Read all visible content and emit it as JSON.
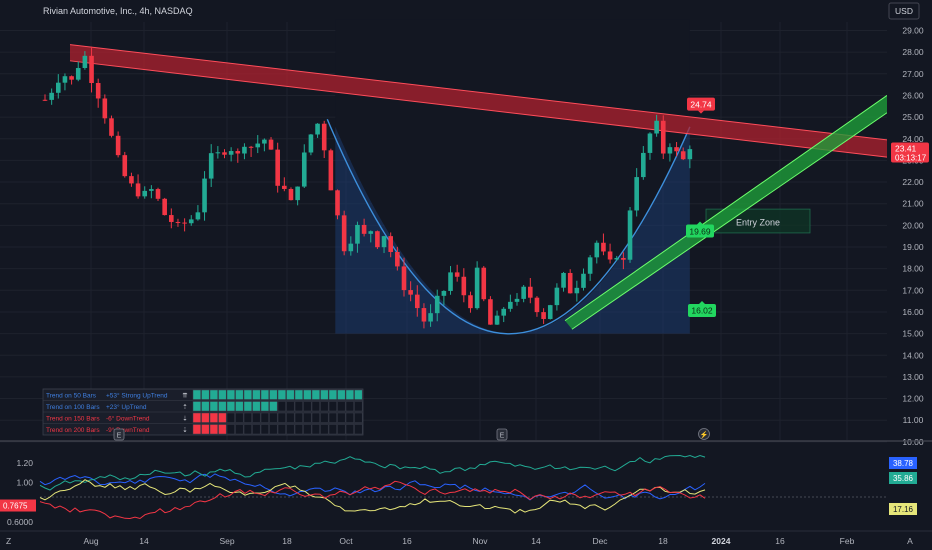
{
  "header": {
    "title": "Rivian Automotive, Inc., 4h, NASDAQ",
    "currency": "USD"
  },
  "chart_data": {
    "type": "candlestick",
    "symbol": "RIVN",
    "interval": "4h",
    "x_labels": [
      "Aug",
      "14",
      "Sep",
      "18",
      "Oct",
      "16",
      "Nov",
      "14",
      "Dec",
      "18",
      "2024",
      "16",
      "Feb"
    ],
    "price_axis": {
      "ylim": [
        10.0,
        29.5
      ],
      "ticks": [
        29.0,
        28.0,
        27.0,
        26.0,
        25.0,
        24.0,
        23.0,
        22.0,
        21.0,
        20.0,
        19.0,
        18.0,
        17.0,
        16.0,
        15.0,
        14.0,
        13.0,
        12.0,
        11.0,
        10.0
      ]
    },
    "last_price": {
      "value": "23.41",
      "countdown": "03:13:17"
    },
    "price_path": [
      [
        0.0,
        25.8
      ],
      [
        0.8,
        26.4
      ],
      [
        1.6,
        27.2
      ],
      [
        2.2,
        26.4
      ],
      [
        3.0,
        27.4
      ],
      [
        3.6,
        27.8
      ],
      [
        4.2,
        26.8
      ],
      [
        5.0,
        25.8
      ],
      [
        5.8,
        24.4
      ],
      [
        6.6,
        23.0
      ],
      [
        7.4,
        22.0
      ],
      [
        8.2,
        21.6
      ],
      [
        9.0,
        21.4
      ],
      [
        9.8,
        21.7
      ],
      [
        10.6,
        20.6
      ],
      [
        11.4,
        20.2
      ],
      [
        12.2,
        19.8
      ],
      [
        13.0,
        20.4
      ],
      [
        13.6,
        20.1
      ],
      [
        14.2,
        22.0
      ],
      [
        15.0,
        23.1
      ],
      [
        15.8,
        23.3
      ],
      [
        16.6,
        23.7
      ],
      [
        17.4,
        23.2
      ],
      [
        18.2,
        24.1
      ],
      [
        18.8,
        23.4
      ],
      [
        19.6,
        24.2
      ],
      [
        20.4,
        23.3
      ],
      [
        21.0,
        22.0
      ],
      [
        21.6,
        21.6
      ],
      [
        22.2,
        21.0
      ],
      [
        22.8,
        22.0
      ],
      [
        23.4,
        23.2
      ],
      [
        24.0,
        24.2
      ],
      [
        24.6,
        24.7
      ],
      [
        25.2,
        23.6
      ],
      [
        25.6,
        22.0
      ],
      [
        26.0,
        21.6
      ],
      [
        26.6,
        19.8
      ],
      [
        27.2,
        18.6
      ],
      [
        27.6,
        19.4
      ],
      [
        28.2,
        19.9
      ],
      [
        28.8,
        19.5
      ],
      [
        29.4,
        19.8
      ],
      [
        30.0,
        19.2
      ],
      [
        30.6,
        19.6
      ],
      [
        31.2,
        18.8
      ],
      [
        31.8,
        17.9
      ],
      [
        32.4,
        17.2
      ],
      [
        33.0,
        16.8
      ],
      [
        33.6,
        16.2
      ],
      [
        34.2,
        15.6
      ],
      [
        34.8,
        15.8
      ],
      [
        35.4,
        16.5
      ],
      [
        36.0,
        17.0
      ],
      [
        36.6,
        17.8
      ],
      [
        37.2,
        17.5
      ],
      [
        37.8,
        16.8
      ],
      [
        38.4,
        16.4
      ],
      [
        39.0,
        17.8
      ],
      [
        39.6,
        16.5
      ],
      [
        40.2,
        15.4
      ],
      [
        40.8,
        15.6
      ],
      [
        41.4,
        16.2
      ],
      [
        42.0,
        16.6
      ],
      [
        42.6,
        16.4
      ],
      [
        43.2,
        17.0
      ],
      [
        43.8,
        16.7
      ],
      [
        44.4,
        16.2
      ],
      [
        45.0,
        15.8
      ],
      [
        45.6,
        16.4
      ],
      [
        46.2,
        17.0
      ],
      [
        46.8,
        17.6
      ],
      [
        47.4,
        17.0
      ],
      [
        48.0,
        17.3
      ],
      [
        48.6,
        18.0
      ],
      [
        49.2,
        18.6
      ],
      [
        49.8,
        19.2
      ],
      [
        50.4,
        18.6
      ],
      [
        51.0,
        18.2
      ],
      [
        51.6,
        18.7
      ],
      [
        52.2,
        18.3
      ],
      [
        52.8,
        20.8
      ],
      [
        53.4,
        22.4
      ],
      [
        54.0,
        23.2
      ],
      [
        54.6,
        24.2
      ],
      [
        55.2,
        24.6
      ],
      [
        55.8,
        23.4
      ],
      [
        56.4,
        23.8
      ],
      [
        57.0,
        23.3
      ],
      [
        57.6,
        23.0
      ],
      [
        58.2,
        23.7
      ],
      [
        58.6,
        23.41
      ]
    ],
    "annotations": {
      "resistance_label": "24.74",
      "zone_top_label": "19.69",
      "zone_bottom_label": "16.02",
      "entry_zone": "Entry Zone"
    },
    "trend_table": [
      {
        "label": "Trend on 50 Bars",
        "value": "+53° Strong UpTrend",
        "arrow": "⇈",
        "filled": 20,
        "color": "#22ab94",
        "text_color": "#3f7fe0"
      },
      {
        "label": "Trend on 100 Bars",
        "value": "+23° UpTrend",
        "arrow": "⇡",
        "filled": 10,
        "color": "#22ab94",
        "text_color": "#3f7fe0"
      },
      {
        "label": "Trend on 150 Bars",
        "value": "-6° DownTrend",
        "arrow": "⇣",
        "filled": 4,
        "color": "#f23645",
        "text_color": "#f23645"
      },
      {
        "label": "Trend on 200 Bars",
        "value": "-9° DownTrend",
        "arrow": "⇣",
        "filled": 4,
        "color": "#f23645",
        "text_color": "#f23645"
      }
    ],
    "oscillator": {
      "ticks": [
        "1.20",
        "1.00",
        "0.6000"
      ],
      "value_left": "0.7675",
      "value_tags": [
        {
          "value": "38.78",
          "color": "#2962ff"
        },
        {
          "value": "35.86",
          "color": "#22ab94"
        },
        {
          "value": "17.16",
          "color": "#e6e67a"
        }
      ]
    }
  },
  "icons": {
    "event": "E",
    "flash": "⚡",
    "timezone": "Z",
    "auto": "A"
  }
}
